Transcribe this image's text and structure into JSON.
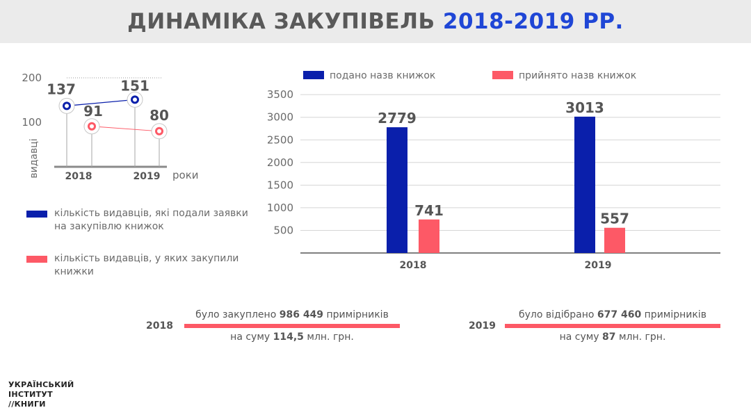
{
  "header": {
    "title_main": "ДИНАМІКА ЗАКУПІВЕЛЬ",
    "title_accent": "2018-2019 РР."
  },
  "colors": {
    "submitted": "#0a1fab",
    "accepted": "#fd5966",
    "accent": "#1f46d6"
  },
  "chart_data": [
    {
      "type": "line",
      "x": [
        "2018",
        "2019"
      ],
      "xlabel": "роки",
      "ylabel": "видавці",
      "yticks": [
        100,
        200
      ],
      "ylim": [
        0,
        200
      ],
      "grid": true,
      "series": [
        {
          "name": "кількість видавців, які подали заявки на закупівлю книжок",
          "values": [
            137,
            151
          ],
          "labels": [
            "137",
            "151"
          ]
        },
        {
          "name": "кількість видавців, у яких закупили книжки",
          "values": [
            91,
            80
          ],
          "labels": [
            "91",
            "80"
          ]
        }
      ]
    },
    {
      "type": "bar",
      "categories": [
        "2018",
        "2019"
      ],
      "yticks": [
        500,
        1000,
        1500,
        2000,
        2500,
        3000,
        3500
      ],
      "ylim": [
        0,
        3500
      ],
      "grid": true,
      "legend": "top",
      "series": [
        {
          "name": "подано назв книжок",
          "values": [
            2779,
            3013
          ],
          "labels": [
            "2779",
            "3013"
          ]
        },
        {
          "name": "прийнято назв книжок",
          "values": [
            741,
            557
          ],
          "labels": [
            "741",
            "557"
          ]
        }
      ]
    }
  ],
  "summary": [
    {
      "year": "2018",
      "l1_pre": "було закуплено",
      "l1_num": "986 449",
      "l1_post": "примірників",
      "l2_pre": "на суму",
      "l2_num": "114,5",
      "l2_post": "млн. грн."
    },
    {
      "year": "2019",
      "l1_pre": "було відібрано",
      "l1_num": "677 460",
      "l1_post": "примірників",
      "l2_pre": "на суму",
      "l2_num": "87",
      "l2_post": "млн. грн."
    }
  ],
  "logo": {
    "line1": "УКРАЇНСЬКИЙ",
    "line2": "ІНСТИТУТ",
    "line3": "//КНИГИ"
  }
}
